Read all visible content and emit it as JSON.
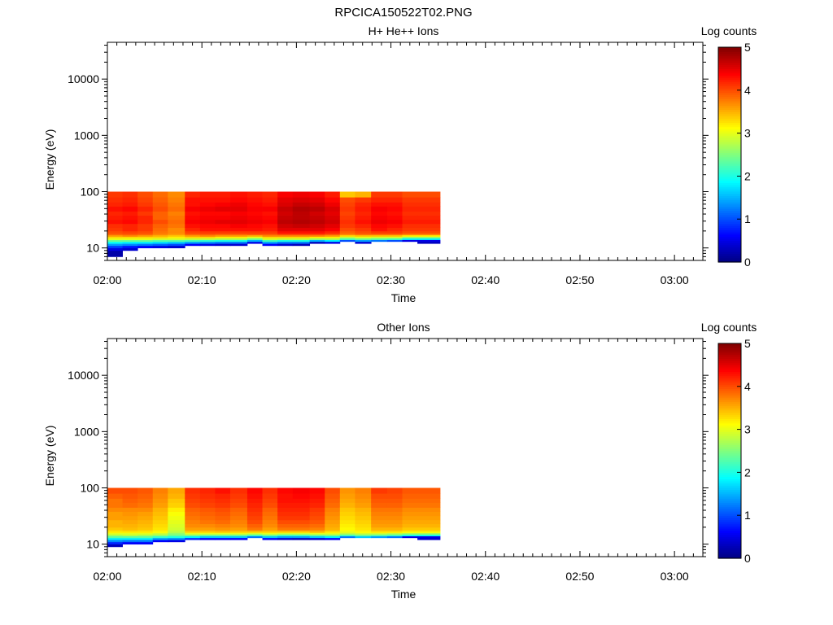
{
  "figure_title": "RPCICA150522T02.PNG",
  "panels_axes": {
    "ylabel": "Energy (eV)",
    "xlabel": "Time",
    "colorbar_label": "Log counts"
  },
  "chart_data": [
    {
      "type": "heatmap",
      "title": "H+ He++ Ions",
      "xlabel": "Time",
      "ylabel": "Energy (eV)",
      "y_scale": "log",
      "ylim": [
        6,
        45000
      ],
      "xlim": [
        "02:00",
        "03:03"
      ],
      "x_ticks": [
        "02:00",
        "02:10",
        "02:20",
        "02:30",
        "02:40",
        "02:50",
        "03:00"
      ],
      "y_ticks": [
        "10",
        "100",
        "1000",
        "10000"
      ],
      "colorbar": {
        "label": "Log counts",
        "range": [
          0,
          5
        ],
        "ticks": [
          "0",
          "1",
          "2",
          "3",
          "4",
          "5"
        ]
      },
      "time_bins_minutes": [
        0.0,
        1.6,
        3.2,
        4.8,
        6.4,
        8.2,
        9.8,
        11.4,
        13.0,
        14.8,
        16.4,
        18.0,
        19.6,
        21.4,
        23.0,
        24.6,
        26.2,
        27.9,
        29.6,
        31.2,
        32.8,
        35.2
      ],
      "energy_bins_ev": [
        7,
        9,
        10,
        11,
        12,
        13,
        14,
        15,
        16,
        17,
        18,
        20,
        23,
        27,
        32,
        38,
        45,
        55,
        65,
        80,
        100
      ],
      "log_counts": [
        [
          0.2,
          0.5,
          0.9,
          1.4,
          1.9,
          2.4,
          3.0,
          3.3,
          3.6,
          3.85,
          4.0,
          4.1,
          4.15,
          4.3,
          4.25,
          4.2,
          4.3,
          4.2,
          4.15,
          4.1
        ],
        [
          0.0,
          0.4,
          0.7,
          1.3,
          1.8,
          2.4,
          3.0,
          3.3,
          3.7,
          3.9,
          4.05,
          4.2,
          4.2,
          4.35,
          4.3,
          4.25,
          4.35,
          4.25,
          4.2,
          4.15
        ],
        [
          0.0,
          0.0,
          0.6,
          1.2,
          1.8,
          2.4,
          3.0,
          3.3,
          3.6,
          3.85,
          4.0,
          4.1,
          4.1,
          4.2,
          4.2,
          4.1,
          4.2,
          4.1,
          4.05,
          4.0
        ],
        [
          0.0,
          0.0,
          0.5,
          1.1,
          1.7,
          2.3,
          2.9,
          3.3,
          3.5,
          3.7,
          3.8,
          3.85,
          3.9,
          4.0,
          3.9,
          3.9,
          4.0,
          3.95,
          3.9,
          3.85
        ],
        [
          0.0,
          0.0,
          0.4,
          1.0,
          1.6,
          2.3,
          2.9,
          3.2,
          3.4,
          3.6,
          3.7,
          3.7,
          3.8,
          3.85,
          3.8,
          3.75,
          3.85,
          3.8,
          3.75,
          3.7
        ],
        [
          0.0,
          0.0,
          0.0,
          0.6,
          1.4,
          2.2,
          2.8,
          3.3,
          3.6,
          3.85,
          4.05,
          4.2,
          4.3,
          4.4,
          4.35,
          4.3,
          4.4,
          4.3,
          4.3,
          4.2
        ],
        [
          0.0,
          0.0,
          0.0,
          0.5,
          1.3,
          2.1,
          2.8,
          3.3,
          3.7,
          3.9,
          4.1,
          4.3,
          4.35,
          4.45,
          4.4,
          4.35,
          4.45,
          4.35,
          4.3,
          4.25
        ],
        [
          0.0,
          0.0,
          0.0,
          0.4,
          1.2,
          2.0,
          2.7,
          3.2,
          3.6,
          3.85,
          4.1,
          4.3,
          4.35,
          4.5,
          4.4,
          4.35,
          4.5,
          4.4,
          4.3,
          4.25
        ],
        [
          0.0,
          0.0,
          0.0,
          0.4,
          1.2,
          2.0,
          2.7,
          3.2,
          3.6,
          3.85,
          4.1,
          4.3,
          4.4,
          4.5,
          4.45,
          4.4,
          4.5,
          4.45,
          4.35,
          4.3
        ],
        [
          0.0,
          0.0,
          0.0,
          0.0,
          0.5,
          1.5,
          2.4,
          3.0,
          3.5,
          3.9,
          4.1,
          4.3,
          4.35,
          4.45,
          4.4,
          4.35,
          4.4,
          4.35,
          4.3,
          4.25
        ],
        [
          0.0,
          0.0,
          0.0,
          0.6,
          1.4,
          2.2,
          2.9,
          3.3,
          3.7,
          3.9,
          4.1,
          4.25,
          4.3,
          4.4,
          4.35,
          4.3,
          4.4,
          4.3,
          4.25,
          4.2
        ],
        [
          0.0,
          0.0,
          0.0,
          0.4,
          1.2,
          2.0,
          2.8,
          3.3,
          3.7,
          4.0,
          4.3,
          4.5,
          4.6,
          4.7,
          4.65,
          4.6,
          4.65,
          4.55,
          4.5,
          4.4
        ],
        [
          0.0,
          0.0,
          0.0,
          0.3,
          1.2,
          2.0,
          2.8,
          3.3,
          3.7,
          4.0,
          4.3,
          4.5,
          4.65,
          4.75,
          4.7,
          4.7,
          4.75,
          4.65,
          4.55,
          4.45
        ],
        [
          0.0,
          0.0,
          0.0,
          0.0,
          0.3,
          1.5,
          2.6,
          3.2,
          3.7,
          4.0,
          4.3,
          4.5,
          4.6,
          4.7,
          4.65,
          4.6,
          4.7,
          4.6,
          4.5,
          4.4
        ],
        [
          0.0,
          0.0,
          0.0,
          0.0,
          0.5,
          1.8,
          2.7,
          3.2,
          3.6,
          3.9,
          4.2,
          4.4,
          4.5,
          4.6,
          4.55,
          4.5,
          4.55,
          4.45,
          4.35,
          4.25
        ],
        [
          0.0,
          0.0,
          0.0,
          0.0,
          0.0,
          1.0,
          2.2,
          2.8,
          3.3,
          3.7,
          3.9,
          4.0,
          4.1,
          4.15,
          4.1,
          4.05,
          4.1,
          4.05,
          4.0,
          3.4
        ],
        [
          0.0,
          0.0,
          0.0,
          0.0,
          0.4,
          1.4,
          2.4,
          3.0,
          3.4,
          3.8,
          4.0,
          4.1,
          4.2,
          4.3,
          4.25,
          4.2,
          4.25,
          4.2,
          4.1,
          3.5
        ],
        [
          0.0,
          0.0,
          0.0,
          0.0,
          0.0,
          1.2,
          2.3,
          2.9,
          3.4,
          3.8,
          4.1,
          4.3,
          4.35,
          4.45,
          4.4,
          4.35,
          4.4,
          4.3,
          4.2,
          4.1
        ],
        [
          0.0,
          0.0,
          0.0,
          0.0,
          0.0,
          1.0,
          2.2,
          2.9,
          3.4,
          3.8,
          4.1,
          4.2,
          4.3,
          4.4,
          4.35,
          4.3,
          4.35,
          4.3,
          4.2,
          4.1
        ],
        [
          0.0,
          0.0,
          0.0,
          0.0,
          0.0,
          0.5,
          1.8,
          2.6,
          3.2,
          3.7,
          4.0,
          4.1,
          4.15,
          4.25,
          4.2,
          4.15,
          4.2,
          4.15,
          4.1,
          4.0
        ],
        [
          0.0,
          0.0,
          0.0,
          0.0,
          0.3,
          0.5,
          1.8,
          2.6,
          3.2,
          3.7,
          4.0,
          4.1,
          4.15,
          4.25,
          4.2,
          4.15,
          4.2,
          4.15,
          4.1,
          4.0
        ]
      ]
    },
    {
      "type": "heatmap",
      "title": "Other Ions",
      "xlabel": "Time",
      "ylabel": "Energy (eV)",
      "y_scale": "log",
      "ylim": [
        6,
        45000
      ],
      "xlim": [
        "02:00",
        "03:03"
      ],
      "x_ticks": [
        "02:00",
        "02:10",
        "02:20",
        "02:30",
        "02:40",
        "02:50",
        "03:00"
      ],
      "y_ticks": [
        "10",
        "100",
        "1000",
        "10000"
      ],
      "colorbar": {
        "label": "Log counts",
        "range": [
          0,
          5
        ],
        "ticks": [
          "0",
          "1",
          "2",
          "3",
          "4",
          "5"
        ]
      },
      "time_bins_minutes": [
        0.0,
        1.6,
        3.2,
        4.8,
        6.4,
        8.2,
        9.8,
        11.4,
        13.0,
        14.8,
        16.4,
        18.0,
        19.6,
        21.4,
        23.0,
        24.6,
        26.2,
        27.9,
        29.6,
        31.2,
        32.8,
        35.2
      ],
      "energy_bins_ev": [
        7,
        9,
        10,
        11,
        12,
        13,
        14,
        15,
        16,
        17,
        18,
        20,
        23,
        27,
        32,
        38,
        45,
        55,
        65,
        80,
        100
      ],
      "log_counts": [
        [
          0.0,
          0.3,
          0.8,
          1.3,
          1.8,
          2.3,
          2.7,
          3.0,
          3.2,
          3.3,
          3.4,
          3.5,
          3.5,
          3.6,
          3.6,
          3.7,
          3.8,
          3.8,
          3.9,
          4.0
        ],
        [
          0.0,
          0.0,
          0.6,
          1.2,
          1.8,
          2.3,
          2.8,
          3.0,
          3.2,
          3.35,
          3.45,
          3.5,
          3.55,
          3.6,
          3.65,
          3.7,
          3.85,
          3.9,
          3.95,
          4.0
        ],
        [
          0.0,
          0.0,
          0.6,
          1.2,
          1.8,
          2.3,
          2.7,
          3.0,
          3.2,
          3.3,
          3.4,
          3.45,
          3.5,
          3.55,
          3.6,
          3.7,
          3.8,
          3.85,
          3.9,
          3.95
        ],
        [
          0.0,
          0.0,
          0.0,
          0.6,
          1.4,
          2.1,
          2.6,
          2.9,
          3.1,
          3.2,
          3.25,
          3.3,
          3.35,
          3.4,
          3.45,
          3.5,
          3.6,
          3.65,
          3.7,
          3.75
        ],
        [
          0.0,
          0.0,
          0.0,
          0.5,
          1.3,
          2.0,
          2.4,
          2.6,
          2.75,
          2.85,
          2.9,
          2.95,
          3.0,
          3.05,
          3.1,
          3.2,
          3.35,
          3.4,
          3.5,
          3.55
        ],
        [
          0.0,
          0.0,
          0.0,
          0.0,
          0.8,
          1.8,
          2.5,
          3.0,
          3.3,
          3.5,
          3.6,
          3.7,
          3.75,
          3.8,
          3.85,
          3.9,
          4.0,
          4.05,
          4.1,
          4.15
        ],
        [
          0.0,
          0.0,
          0.0,
          0.0,
          0.6,
          1.6,
          2.4,
          3.0,
          3.3,
          3.5,
          3.6,
          3.7,
          3.8,
          3.85,
          3.9,
          3.95,
          4.05,
          4.1,
          4.15,
          4.2
        ],
        [
          0.0,
          0.0,
          0.0,
          0.0,
          0.6,
          1.6,
          2.4,
          3.0,
          3.35,
          3.55,
          3.65,
          3.75,
          3.85,
          3.9,
          3.95,
          4.0,
          4.1,
          4.15,
          4.2,
          4.3
        ],
        [
          0.0,
          0.0,
          0.0,
          0.0,
          0.6,
          1.6,
          2.4,
          3.0,
          3.3,
          3.5,
          3.6,
          3.7,
          3.75,
          3.8,
          3.85,
          3.9,
          4.0,
          4.05,
          4.1,
          4.15
        ],
        [
          0.0,
          0.0,
          0.0,
          0.0,
          0.0,
          1.2,
          2.2,
          2.9,
          3.3,
          3.6,
          3.8,
          3.9,
          4.0,
          4.05,
          4.1,
          4.15,
          4.2,
          4.25,
          4.3,
          4.35
        ],
        [
          0.0,
          0.0,
          0.0,
          0.0,
          0.6,
          1.6,
          2.4,
          3.0,
          3.3,
          3.5,
          3.6,
          3.7,
          3.75,
          3.8,
          3.85,
          3.9,
          4.0,
          4.05,
          4.1,
          4.15
        ],
        [
          0.0,
          0.0,
          0.0,
          0.0,
          0.4,
          1.4,
          2.2,
          2.9,
          3.3,
          3.6,
          3.8,
          3.9,
          4.0,
          4.1,
          4.15,
          4.2,
          4.25,
          4.3,
          4.3,
          4.35
        ],
        [
          0.0,
          0.0,
          0.0,
          0.0,
          0.3,
          1.4,
          2.2,
          2.9,
          3.3,
          3.6,
          3.8,
          3.9,
          4.0,
          4.1,
          4.15,
          4.2,
          4.25,
          4.3,
          4.35,
          4.4
        ],
        [
          0.0,
          0.0,
          0.0,
          0.0,
          0.4,
          1.6,
          2.4,
          3.0,
          3.4,
          3.6,
          3.75,
          3.85,
          3.95,
          4.0,
          4.05,
          4.1,
          4.2,
          4.25,
          4.3,
          4.35
        ],
        [
          0.0,
          0.0,
          0.0,
          0.0,
          0.6,
          1.8,
          2.5,
          3.0,
          3.2,
          3.4,
          3.5,
          3.55,
          3.6,
          3.65,
          3.7,
          3.75,
          3.85,
          3.9,
          3.95,
          4.0
        ],
        [
          0.0,
          0.0,
          0.0,
          0.0,
          0.0,
          1.2,
          2.2,
          2.8,
          3.0,
          3.1,
          3.15,
          3.2,
          3.25,
          3.3,
          3.35,
          3.4,
          3.5,
          3.55,
          3.6,
          3.65
        ],
        [
          0.0,
          0.0,
          0.0,
          0.0,
          0.0,
          1.6,
          2.4,
          2.9,
          3.1,
          3.2,
          3.25,
          3.3,
          3.35,
          3.4,
          3.45,
          3.5,
          3.6,
          3.65,
          3.7,
          3.75
        ],
        [
          0.0,
          0.0,
          0.0,
          0.0,
          0.0,
          1.4,
          2.3,
          2.9,
          3.2,
          3.4,
          3.5,
          3.6,
          3.65,
          3.7,
          3.75,
          3.8,
          3.9,
          3.95,
          4.0,
          4.1
        ],
        [
          0.0,
          0.0,
          0.0,
          0.0,
          0.0,
          1.2,
          2.2,
          2.8,
          3.2,
          3.4,
          3.5,
          3.6,
          3.65,
          3.7,
          3.75,
          3.8,
          3.9,
          3.95,
          4.0,
          4.05
        ],
        [
          0.0,
          0.0,
          0.0,
          0.0,
          0.0,
          0.5,
          2.0,
          2.7,
          3.1,
          3.3,
          3.4,
          3.5,
          3.55,
          3.6,
          3.65,
          3.7,
          3.8,
          3.85,
          3.9,
          3.95
        ],
        [
          0.0,
          0.0,
          0.0,
          0.0,
          0.4,
          0.5,
          2.0,
          2.7,
          3.1,
          3.3,
          3.4,
          3.5,
          3.55,
          3.6,
          3.65,
          3.7,
          3.8,
          3.85,
          3.9,
          3.95
        ]
      ]
    }
  ]
}
